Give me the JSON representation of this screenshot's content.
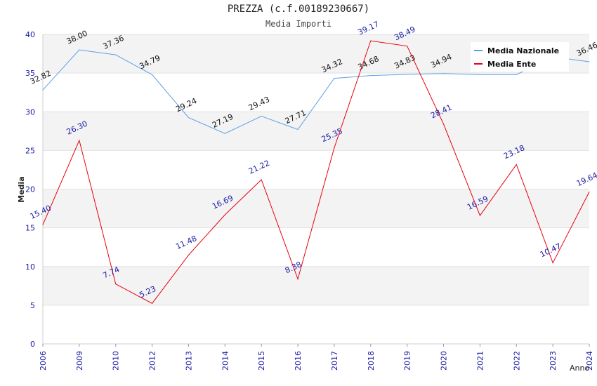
{
  "chart_data": {
    "type": "line",
    "title": "PREZZA (c.f.00189230667)",
    "subtitle": "Media Importi",
    "xlabel": "Anno",
    "ylabel": "Media",
    "categories": [
      "2006",
      "2009",
      "2010",
      "2012",
      "2013",
      "2014",
      "2015",
      "2016",
      "2017",
      "2018",
      "2019",
      "2020",
      "2021",
      "2022",
      "2023",
      "2024"
    ],
    "ylim": [
      0,
      40
    ],
    "yticks": [
      0,
      5,
      10,
      15,
      20,
      25,
      30,
      35,
      40
    ],
    "grid": "horizontal bands",
    "legend_position": "top-right",
    "series": [
      {
        "name": "Media Nazionale",
        "color": "#5aa0e6",
        "values": [
          32.82,
          38.0,
          37.36,
          34.79,
          29.24,
          27.19,
          29.43,
          27.71,
          34.32,
          34.68,
          34.83,
          34.94,
          34.8,
          34.8,
          37.1,
          36.46
        ],
        "labels": [
          "32.82",
          "38.00",
          "37.36",
          "34.79",
          "29.24",
          "27.19",
          "29.43",
          "27.71",
          "34.32",
          "34.68",
          "34.83",
          "34.94",
          "",
          "",
          "",
          "36.46"
        ]
      },
      {
        "name": "Media Ente",
        "color": "#e8000f",
        "values": [
          15.4,
          26.3,
          7.74,
          5.23,
          11.48,
          16.69,
          21.22,
          8.38,
          25.35,
          39.17,
          38.49,
          28.41,
          16.59,
          23.18,
          10.47,
          19.64
        ],
        "labels": [
          "15.40",
          "26.30",
          "7.74",
          "5.23",
          "11.48",
          "16.69",
          "21.22",
          "8.38",
          "25.35",
          "39.17",
          "38.49",
          "28.41",
          "16.59",
          "23.18",
          "10.47",
          "19.64"
        ]
      }
    ]
  }
}
